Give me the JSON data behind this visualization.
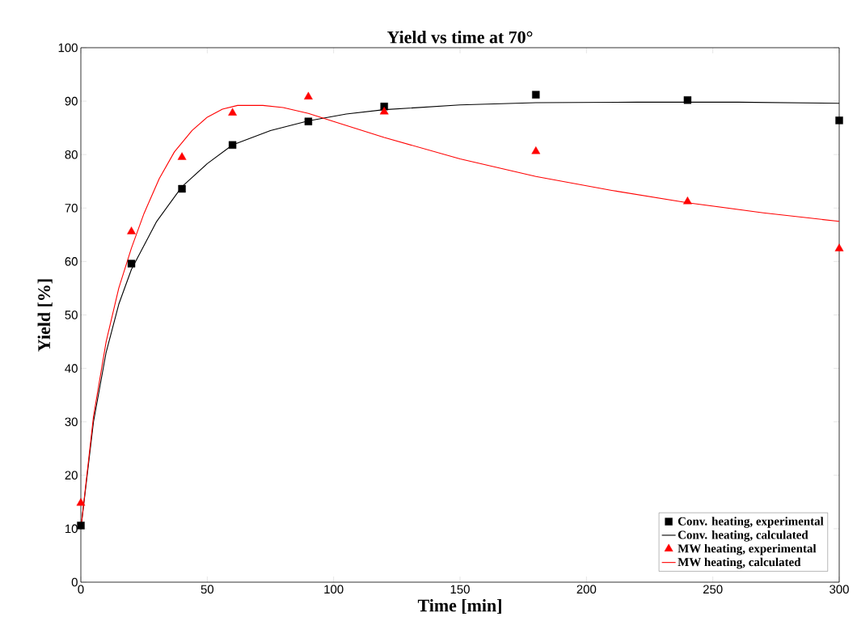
{
  "chart_data": {
    "type": "line",
    "title": "Yield vs time at 70°",
    "xlabel": "Time [min]",
    "ylabel": "Yield [%]",
    "xlim": [
      0,
      300
    ],
    "ylim": [
      0,
      100
    ],
    "xticks": [
      0,
      50,
      100,
      150,
      200,
      250,
      300
    ],
    "yticks": [
      0,
      10,
      20,
      30,
      40,
      50,
      60,
      70,
      80,
      90,
      100
    ],
    "grid": false,
    "legend": "bottom right",
    "series": [
      {
        "name": "Conv. heating, experimental",
        "type": "scatter",
        "marker": "square",
        "color": "#000000",
        "x": [
          0,
          20,
          40,
          60,
          90,
          120,
          180,
          240,
          300
        ],
        "values": [
          10.6,
          59.6,
          73.6,
          81.8,
          86.2,
          89.0,
          91.2,
          90.2,
          86.4
        ]
      },
      {
        "name": "Conv. heating, calculated",
        "marker": "none",
        "line_style": "solid",
        "color": "#000000",
        "x": [
          0,
          5,
          10,
          15,
          20,
          30,
          40,
          50,
          60,
          75,
          90,
          105,
          120,
          150,
          180,
          220,
          260,
          300
        ],
        "values": [
          10,
          30,
          43,
          52,
          58.5,
          67.5,
          74,
          78.3,
          81.8,
          84.5,
          86.3,
          87.6,
          88.4,
          89.3,
          89.7,
          89.8,
          89.8,
          89.6
        ]
      },
      {
        "name": "MW heating, experimental",
        "type": "scatter",
        "marker": "triangle",
        "color": "#ff0000",
        "x": [
          0,
          20,
          40,
          60,
          90,
          120,
          180,
          240,
          300
        ],
        "values": [
          14.8,
          65.6,
          79.5,
          87.8,
          90.8,
          88.0,
          80.6,
          71.2,
          62.4
        ]
      },
      {
        "name": "MW heating, calculated",
        "marker": "none",
        "line_style": "solid",
        "color": "#ff0000",
        "x": [
          0,
          5,
          10,
          15,
          20,
          25,
          31,
          37,
          44,
          50,
          56,
          62,
          72,
          80,
          90,
          100,
          120,
          150,
          180,
          210,
          240,
          270,
          300
        ],
        "values": [
          10,
          31,
          45,
          55,
          62.5,
          69,
          75.5,
          80.5,
          84.5,
          87,
          88.5,
          89.2,
          89.2,
          88.8,
          87.7,
          86.2,
          83.2,
          79.2,
          75.9,
          73.3,
          71.0,
          69.1,
          67.5
        ]
      }
    ]
  }
}
